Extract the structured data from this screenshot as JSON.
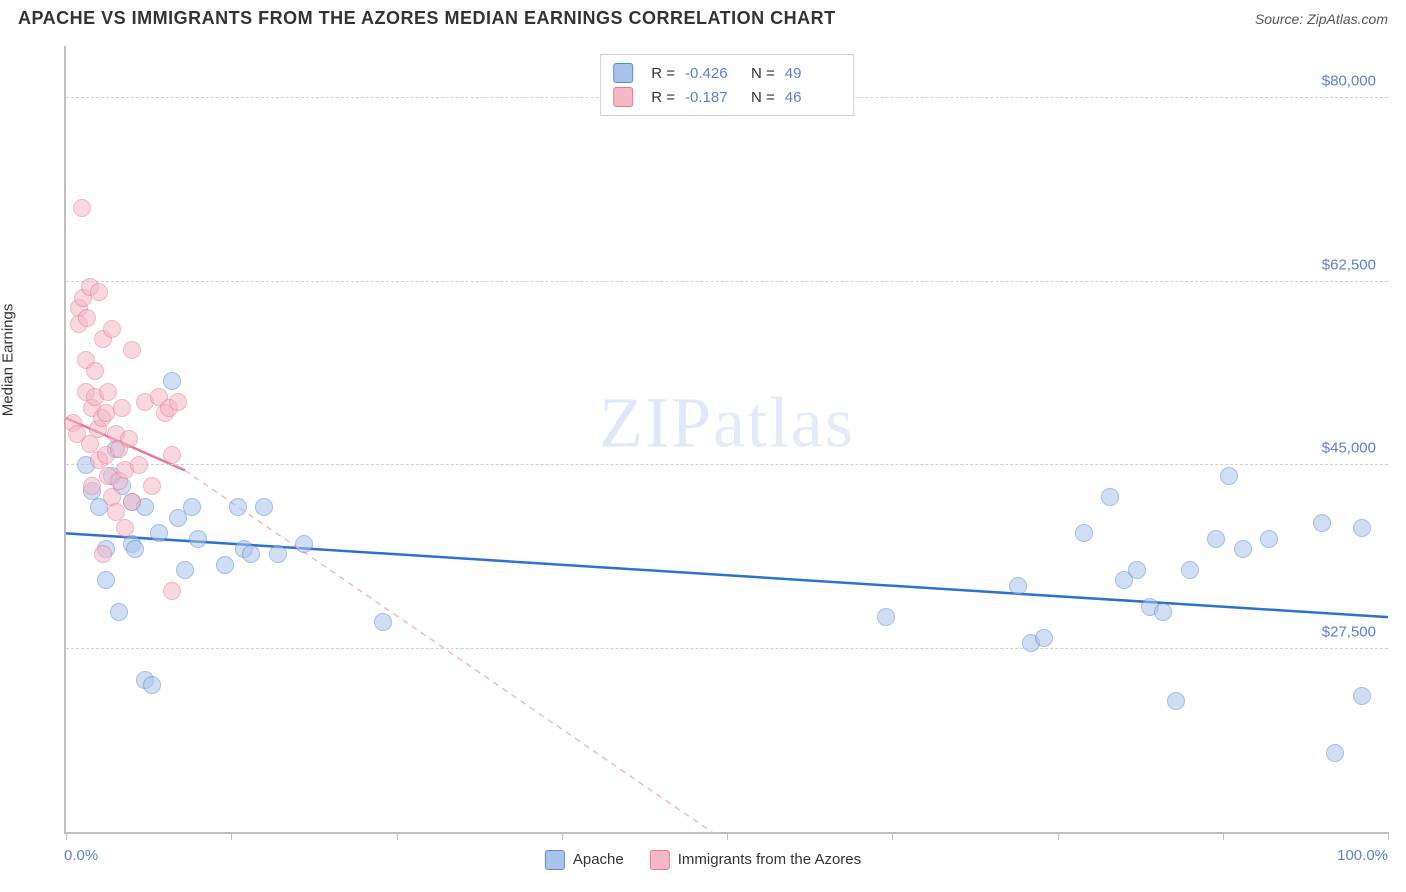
{
  "title": "APACHE VS IMMIGRANTS FROM THE AZORES MEDIAN EARNINGS CORRELATION CHART",
  "source": "Source: ZipAtlas.com",
  "ylabel": "Median Earnings",
  "watermark_a": "ZIP",
  "watermark_b": "atlas",
  "chart": {
    "type": "scatter",
    "xlim": [
      0,
      100
    ],
    "ylim": [
      10000,
      85000
    ],
    "x_ticks": [
      0,
      12.5,
      25,
      37.5,
      50,
      62.5,
      75,
      87.5,
      100
    ],
    "x_min_label": "0.0%",
    "x_max_label": "100.0%",
    "y_gridlines": [
      27500,
      45000,
      62500,
      80000
    ],
    "y_tick_labels": [
      "$27,500",
      "$45,000",
      "$62,500",
      "$80,000"
    ],
    "background_color": "#ffffff",
    "grid_color": "#d0d0d0",
    "axis_color": "#bfbfbf",
    "tick_label_color": "#5b7fd9",
    "point_radius": 9,
    "point_opacity": 0.55,
    "series": [
      {
        "name": "Apache",
        "color_fill": "#a8c4ec",
        "color_stroke": "#5b8bd4",
        "R": "-0.426",
        "N": "49",
        "trend": {
          "x1": 0,
          "y1": 38500,
          "x2": 100,
          "y2": 30500,
          "stroke": "#2f6fd0",
          "width": 2.5,
          "dash": "none"
        },
        "trend_ext": null,
        "points": [
          [
            1.5,
            45000
          ],
          [
            2,
            42500
          ],
          [
            2.5,
            41000
          ],
          [
            3,
            34000
          ],
          [
            3,
            37000
          ],
          [
            3.5,
            44000
          ],
          [
            3.8,
            46500
          ],
          [
            4,
            31000
          ],
          [
            4.2,
            43000
          ],
          [
            5,
            41500
          ],
          [
            5,
            37500
          ],
          [
            5.2,
            37000
          ],
          [
            6,
            41000
          ],
          [
            6,
            24500
          ],
          [
            6.5,
            24000
          ],
          [
            7,
            38500
          ],
          [
            8,
            53000
          ],
          [
            8.5,
            40000
          ],
          [
            9,
            35000
          ],
          [
            9.5,
            41000
          ],
          [
            10,
            38000
          ],
          [
            12,
            35500
          ],
          [
            13,
            41000
          ],
          [
            13.5,
            37000
          ],
          [
            14,
            36500
          ],
          [
            15,
            41000
          ],
          [
            16,
            36500
          ],
          [
            18,
            37500
          ],
          [
            24,
            30000
          ],
          [
            62,
            30500
          ],
          [
            72,
            33500
          ],
          [
            73,
            28000
          ],
          [
            74,
            28500
          ],
          [
            77,
            38500
          ],
          [
            79,
            42000
          ],
          [
            80,
            34000
          ],
          [
            81,
            35000
          ],
          [
            82,
            31500
          ],
          [
            83,
            31000
          ],
          [
            84,
            22500
          ],
          [
            85,
            35000
          ],
          [
            87,
            38000
          ],
          [
            88,
            44000
          ],
          [
            89,
            37000
          ],
          [
            91,
            38000
          ],
          [
            95,
            39500
          ],
          [
            96,
            17500
          ],
          [
            98,
            39000
          ],
          [
            98,
            23000
          ]
        ]
      },
      {
        "name": "Immigrants from the Azores",
        "color_fill": "#f4b8c6",
        "color_stroke": "#e77a9a",
        "R": "-0.187",
        "N": "46",
        "trend": {
          "x1": 0,
          "y1": 49500,
          "x2": 9,
          "y2": 44500,
          "stroke": "#e77a9a",
          "width": 2.5,
          "dash": "none"
        },
        "trend_ext": {
          "x1": 9,
          "y1": 44500,
          "x2": 50,
          "y2": 9000,
          "stroke": "#f4b8c6",
          "width": 1.5,
          "dash": "6,5"
        },
        "points": [
          [
            0.5,
            49000
          ],
          [
            0.8,
            48000
          ],
          [
            1,
            60000
          ],
          [
            1,
            58500
          ],
          [
            1.2,
            69500
          ],
          [
            1.3,
            61000
          ],
          [
            1.5,
            55000
          ],
          [
            1.5,
            52000
          ],
          [
            1.6,
            59000
          ],
          [
            1.8,
            47000
          ],
          [
            1.8,
            62000
          ],
          [
            2,
            50500
          ],
          [
            2,
            43000
          ],
          [
            2.2,
            51500
          ],
          [
            2.2,
            54000
          ],
          [
            2.4,
            48500
          ],
          [
            2.5,
            61500
          ],
          [
            2.5,
            45500
          ],
          [
            2.7,
            49500
          ],
          [
            2.8,
            57000
          ],
          [
            2.8,
            36500
          ],
          [
            3,
            50000
          ],
          [
            3,
            46000
          ],
          [
            3.2,
            44000
          ],
          [
            3.2,
            52000
          ],
          [
            3.5,
            58000
          ],
          [
            3.5,
            42000
          ],
          [
            3.8,
            48000
          ],
          [
            3.8,
            40500
          ],
          [
            4,
            46500
          ],
          [
            4,
            43500
          ],
          [
            4.2,
            50500
          ],
          [
            4.5,
            44500
          ],
          [
            4.5,
            39000
          ],
          [
            4.8,
            47500
          ],
          [
            5,
            56000
          ],
          [
            5,
            41500
          ],
          [
            5.5,
            45000
          ],
          [
            6,
            51000
          ],
          [
            6.5,
            43000
          ],
          [
            7,
            51500
          ],
          [
            7.5,
            50000
          ],
          [
            7.8,
            50500
          ],
          [
            8,
            46000
          ],
          [
            8,
            33000
          ],
          [
            8.5,
            51000
          ]
        ]
      }
    ],
    "top_legend": {
      "rows": [
        {
          "swatch": 0,
          "r_label": "R =",
          "r_val": "-0.426",
          "n_label": "N =",
          "n_val": "49"
        },
        {
          "swatch": 1,
          "r_label": "R =",
          "r_val": "-0.187",
          "n_label": "N =",
          "n_val": "46"
        }
      ]
    },
    "bottom_legend": [
      {
        "swatch": 0,
        "label": "Apache"
      },
      {
        "swatch": 1,
        "label": "Immigrants from the Azores"
      }
    ]
  }
}
